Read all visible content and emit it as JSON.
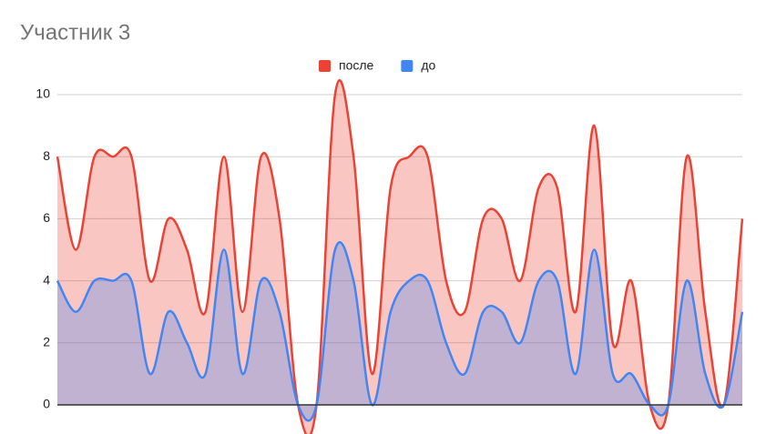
{
  "chart_data": {
    "type": "area",
    "title": "Участник 3",
    "categories": [
      null,
      null,
      null,
      null,
      null,
      null,
      null,
      null,
      null,
      null,
      null,
      null,
      null,
      null,
      null,
      null,
      null,
      null,
      null,
      null,
      null,
      null,
      null,
      null,
      null,
      null,
      null,
      null,
      null,
      null,
      null,
      null,
      null,
      null,
      null,
      null,
      null,
      null
    ],
    "series": [
      {
        "name": "после",
        "color": "#ea4335",
        "values": [
          8,
          5,
          8,
          8,
          8,
          4,
          6,
          5,
          3,
          8,
          3,
          8,
          6,
          0,
          0,
          10,
          8,
          1,
          7,
          8,
          8,
          4,
          3,
          6,
          6,
          4,
          7,
          7,
          3,
          9,
          2,
          4,
          0,
          0,
          8,
          3,
          0,
          6
        ]
      },
      {
        "name": "до",
        "color": "#4285f4",
        "values": [
          4,
          3,
          4,
          4,
          4,
          1,
          3,
          2,
          1,
          5,
          1,
          4,
          3,
          0,
          0,
          5,
          4,
          0,
          3,
          4,
          4,
          2,
          1,
          3,
          3,
          2,
          4,
          4,
          1,
          5,
          1,
          1,
          0,
          0,
          4,
          1,
          0,
          3
        ]
      }
    ],
    "ylim": [
      0,
      10
    ],
    "yticks": [
      0,
      2,
      4,
      6,
      8,
      10
    ],
    "grid": true,
    "legend": "top"
  }
}
